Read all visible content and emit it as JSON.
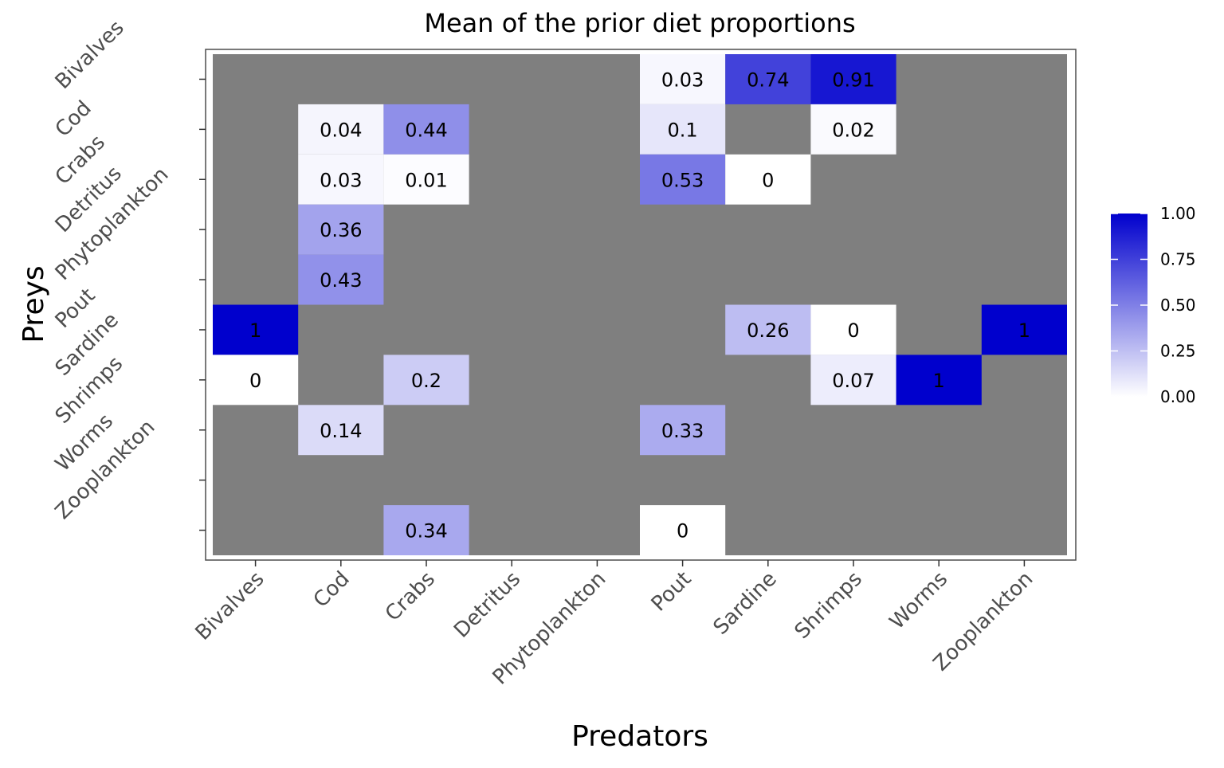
{
  "chart_data": {
    "type": "heatmap",
    "title": "Mean of the prior diet proportions",
    "xlabel": "Predators",
    "ylabel": "Preys",
    "x_categories": [
      "Bivalves",
      "Cod",
      "Crabs",
      "Detritus",
      "Phytoplankton",
      "Pout",
      "Sardine",
      "Shrimps",
      "Worms",
      "Zooplankton"
    ],
    "y_categories": [
      "Bivalves",
      "Cod",
      "Crabs",
      "Detritus",
      "Phytoplankton",
      "Pout",
      "Sardine",
      "Shrimps",
      "Worms",
      "Zooplankton"
    ],
    "na_color": "#7f7f7f",
    "color_low": "#ffffff",
    "color_high": "#0000cd",
    "value_range": [
      0,
      1
    ],
    "legend": {
      "position": "right",
      "breaks": [
        0,
        0.25,
        0.5,
        0.75,
        1
      ],
      "labels": [
        "0.00",
        "0.25",
        "0.50",
        "0.75",
        "1.00"
      ]
    },
    "cells": [
      {
        "prey": "Bivalves",
        "predator": "Pout",
        "value": 0.03,
        "label": "0.03"
      },
      {
        "prey": "Bivalves",
        "predator": "Sardine",
        "value": 0.74,
        "label": "0.74"
      },
      {
        "prey": "Bivalves",
        "predator": "Shrimps",
        "value": 0.91,
        "label": "0.91"
      },
      {
        "prey": "Cod",
        "predator": "Cod",
        "value": 0.04,
        "label": "0.04"
      },
      {
        "prey": "Cod",
        "predator": "Crabs",
        "value": 0.44,
        "label": "0.44"
      },
      {
        "prey": "Cod",
        "predator": "Pout",
        "value": 0.1,
        "label": "0.1"
      },
      {
        "prey": "Cod",
        "predator": "Shrimps",
        "value": 0.02,
        "label": "0.02"
      },
      {
        "prey": "Crabs",
        "predator": "Cod",
        "value": 0.03,
        "label": "0.03"
      },
      {
        "prey": "Crabs",
        "predator": "Crabs",
        "value": 0.01,
        "label": "0.01"
      },
      {
        "prey": "Crabs",
        "predator": "Pout",
        "value": 0.53,
        "label": "0.53"
      },
      {
        "prey": "Crabs",
        "predator": "Sardine",
        "value": 0,
        "label": "0"
      },
      {
        "prey": "Detritus",
        "predator": "Cod",
        "value": 0.36,
        "label": "0.36"
      },
      {
        "prey": "Phytoplankton",
        "predator": "Cod",
        "value": 0.43,
        "label": "0.43"
      },
      {
        "prey": "Pout",
        "predator": "Bivalves",
        "value": 1,
        "label": "1"
      },
      {
        "prey": "Pout",
        "predator": "Sardine",
        "value": 0.26,
        "label": "0.26"
      },
      {
        "prey": "Pout",
        "predator": "Shrimps",
        "value": 0,
        "label": "0"
      },
      {
        "prey": "Pout",
        "predator": "Zooplankton",
        "value": 1,
        "label": "1"
      },
      {
        "prey": "Sardine",
        "predator": "Bivalves",
        "value": 0,
        "label": "0"
      },
      {
        "prey": "Sardine",
        "predator": "Crabs",
        "value": 0.2,
        "label": "0.2"
      },
      {
        "prey": "Sardine",
        "predator": "Shrimps",
        "value": 0.07,
        "label": "0.07"
      },
      {
        "prey": "Sardine",
        "predator": "Worms",
        "value": 1,
        "label": "1"
      },
      {
        "prey": "Shrimps",
        "predator": "Cod",
        "value": 0.14,
        "label": "0.14"
      },
      {
        "prey": "Shrimps",
        "predator": "Pout",
        "value": 0.33,
        "label": "0.33"
      },
      {
        "prey": "Zooplankton",
        "predator": "Crabs",
        "value": 0.34,
        "label": "0.34"
      },
      {
        "prey": "Zooplankton",
        "predator": "Pout",
        "value": 0,
        "label": "0"
      }
    ]
  }
}
